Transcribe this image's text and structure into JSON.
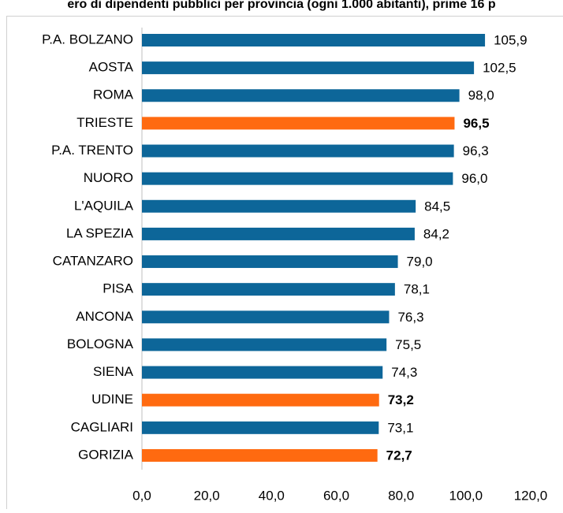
{
  "chart_data": {
    "type": "bar",
    "orientation": "horizontal",
    "title": "ero di dipendenti pubblici per provincia (ogni 1.000 abitanti), prime 16 p",
    "categories": [
      "P.A. BOLZANO",
      "AOSTA",
      "ROMA",
      "TRIESTE",
      "P.A. TRENTO",
      "NUORO",
      "L'AQUILA",
      "LA SPEZIA",
      "CATANZARO",
      "PISA",
      "ANCONA",
      "BOLOGNA",
      "SIENA",
      "UDINE",
      "CAGLIARI",
      "GORIZIA"
    ],
    "values": [
      105.9,
      102.5,
      98.0,
      96.5,
      96.3,
      96.0,
      84.5,
      84.2,
      79.0,
      78.1,
      76.3,
      75.5,
      74.3,
      73.2,
      73.1,
      72.7
    ],
    "value_labels": [
      "105,9",
      "102,5",
      "98,0",
      "96,5",
      "96,3",
      "96,0",
      "84,5",
      "84,2",
      "79,0",
      "78,1",
      "76,3",
      "75,5",
      "74,3",
      "73,2",
      "73,1",
      "72,7"
    ],
    "color": "#0d6699",
    "highlight_color": "#ff6a10",
    "colors": [
      "#0d6699",
      "#0d6699",
      "#0d6699",
      "#ff6a10",
      "#0d6699",
      "#0d6699",
      "#0d6699",
      "#0d6699",
      "#0d6699",
      "#0d6699",
      "#0d6699",
      "#0d6699",
      "#0d6699",
      "#ff6a10",
      "#0d6699",
      "#ff6a10"
    ],
    "xlim": [
      0,
      120
    ],
    "xticks": [
      {
        "value": 0,
        "label": "0,0"
      },
      {
        "value": 20,
        "label": "20,0"
      },
      {
        "value": 40,
        "label": "40,0"
      },
      {
        "value": 60,
        "label": "60,0"
      },
      {
        "value": 80,
        "label": "80,0"
      },
      {
        "value": 100,
        "label": "100,0"
      },
      {
        "value": 120,
        "label": "120,0"
      }
    ],
    "grid": false
  }
}
